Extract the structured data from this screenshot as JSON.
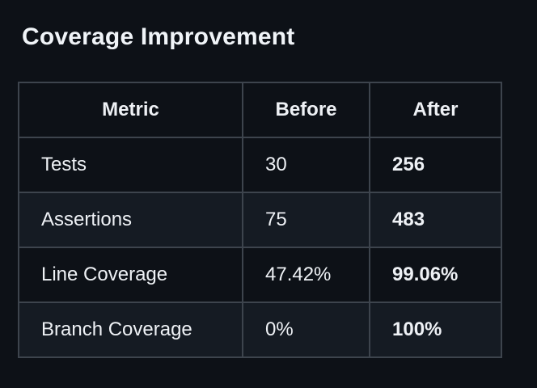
{
  "page": {
    "title": "Coverage Improvement"
  },
  "table": {
    "columns": [
      "Metric",
      "Before",
      "After"
    ],
    "rows": [
      {
        "metric": "Tests",
        "before": "30",
        "after": "256"
      },
      {
        "metric": "Assertions",
        "before": "75",
        "after": "483"
      },
      {
        "metric": "Line Coverage",
        "before": "47.42%",
        "after": "99.06%"
      },
      {
        "metric": "Branch Coverage",
        "before": "0%",
        "after": "100%"
      }
    ]
  },
  "colors": {
    "background": "#0d1117",
    "row_stripe": "#151b23",
    "border": "#3d444d",
    "text": "#eef1f5"
  }
}
